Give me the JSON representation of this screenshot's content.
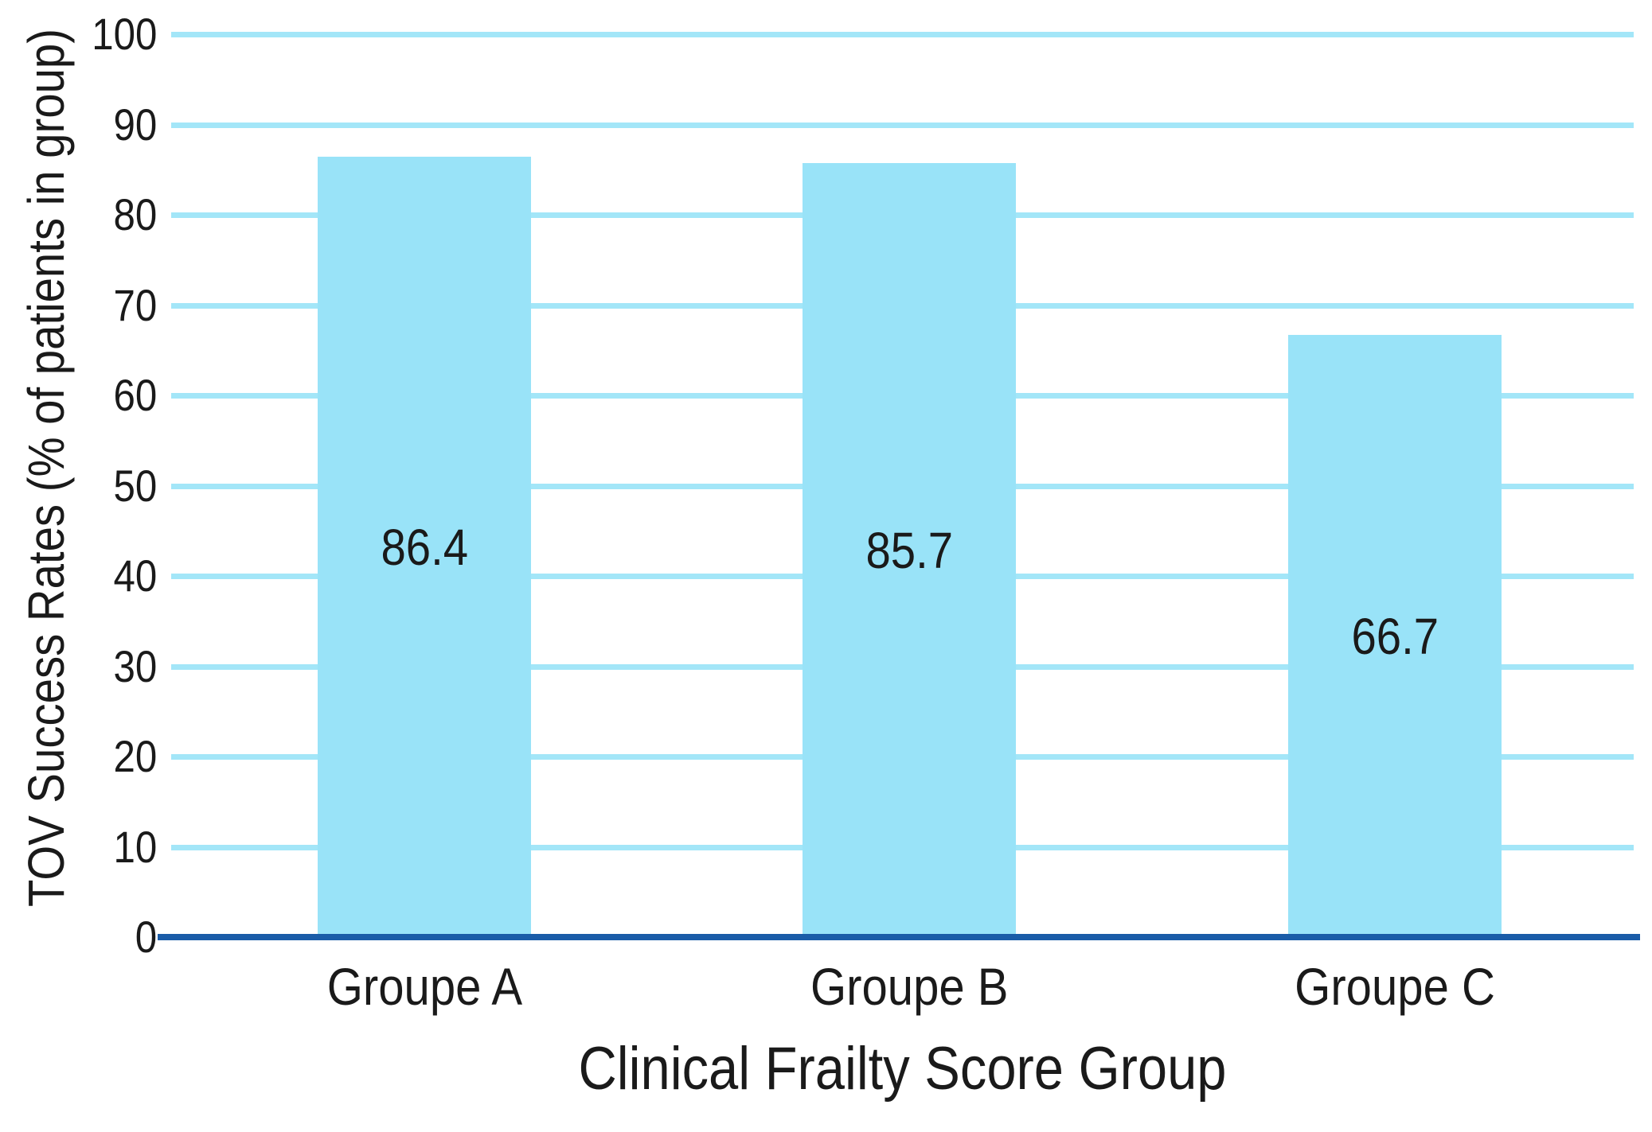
{
  "chart_data": {
    "type": "bar",
    "title": "",
    "categories": [
      "Groupe A",
      "Groupe B",
      "Groupe C"
    ],
    "values": [
      86.4,
      85.7,
      66.7
    ],
    "value_labels": [
      "86.4",
      "85.7",
      "66.7"
    ],
    "xlabel": "Clinical Frailty Score Group",
    "ylabel": "TOV Success Rates (% of patients in group)",
    "ylim": [
      0,
      100
    ],
    "yticks": [
      0,
      10,
      20,
      30,
      40,
      50,
      60,
      70,
      80,
      90,
      100
    ],
    "grid": "horizontal-only, no gridline at 0",
    "legend": "none",
    "bar_value_label_position": "inside-center",
    "colors": {
      "bar_fill": "#99e3f8",
      "gridline": "#a3e6f8",
      "baseline": "#1a5ca8",
      "text": "#1a1a1a",
      "background": "#ffffff"
    }
  }
}
